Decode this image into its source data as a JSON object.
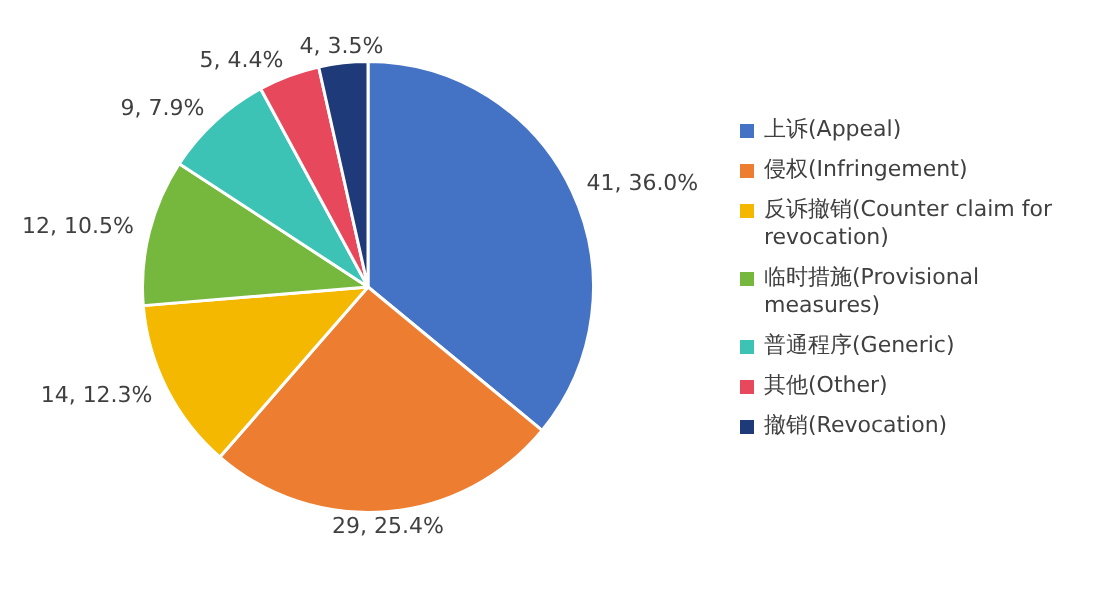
{
  "chart_data": {
    "type": "pie",
    "categories": [
      "上诉(Appeal)",
      "侵权(Infringement)",
      "反诉撤销(Counter claim for revocation)",
      "临时措施(Provisional measures)",
      "普通程序(Generic)",
      "其他(Other)",
      "撤销(Revocation)"
    ],
    "values": [
      41,
      29,
      14,
      12,
      9,
      5,
      4
    ],
    "colors": [
      "#4472c4",
      "#ed7d31",
      "#f5b800",
      "#76b83e",
      "#3cc3b5",
      "#e8485c",
      "#1f3a78"
    ],
    "value_labels": [
      "41, 36.0%",
      "29, 25.4%",
      "14, 12.3%",
      "12, 10.5%",
      "9, 7.9%",
      "5, 4.4%",
      "4, 3.5%"
    ],
    "legend": "right"
  }
}
